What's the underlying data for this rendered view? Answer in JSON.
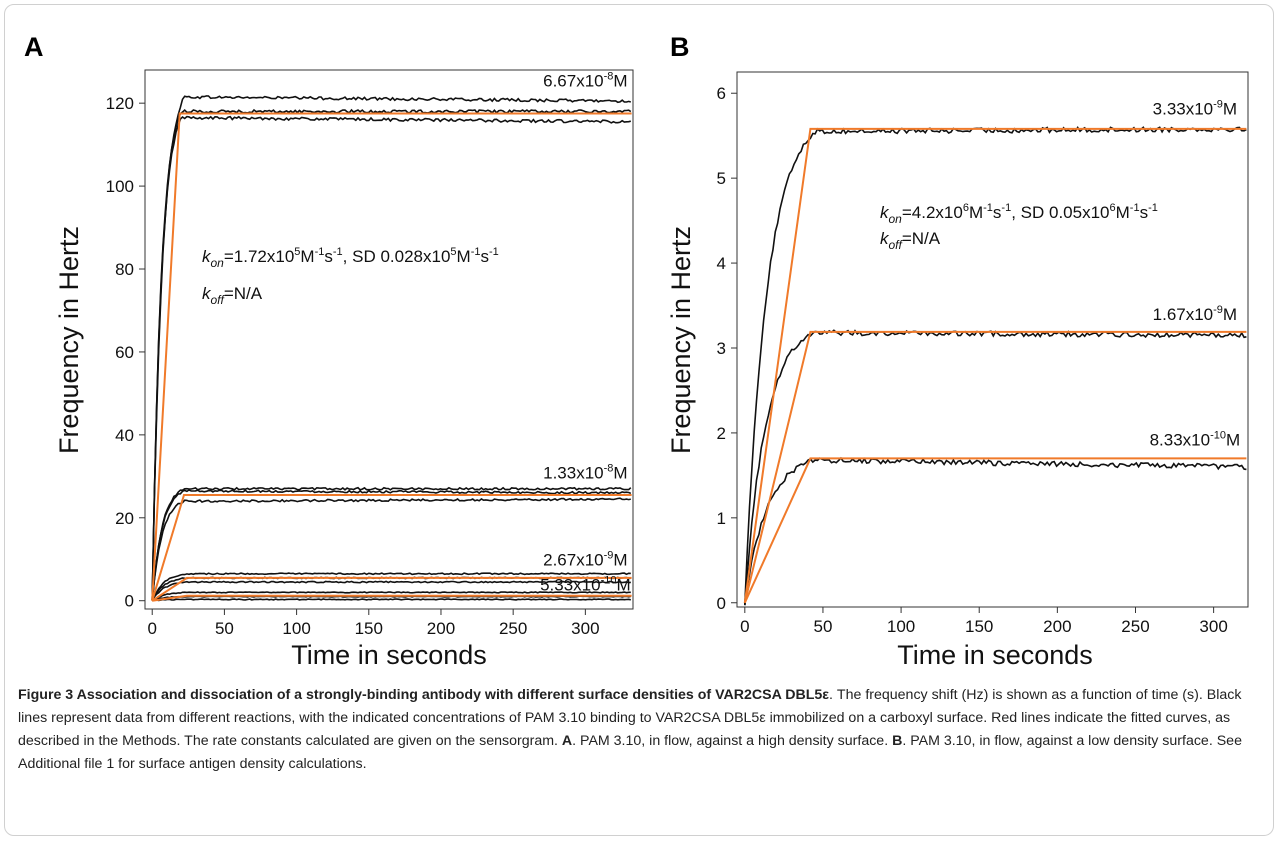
{
  "chart_data": [
    {
      "panel": "A",
      "type": "line",
      "xlabel": "Time in seconds",
      "ylabel": "Frequency in Hertz",
      "xlim": [
        -5,
        333
      ],
      "ylim": [
        -2,
        128
      ],
      "xticks": [
        0,
        50,
        100,
        150,
        200,
        250,
        300
      ],
      "yticks": [
        0,
        20,
        40,
        60,
        80,
        100,
        120
      ],
      "annotation": {
        "kon_sym": "k",
        "kon_sub": "on",
        "kon_value": "=1.72x10",
        "kon_exp1": "5",
        "kon_unit": "M",
        "kon_exp2": "-1",
        "kon_s": "s",
        "kon_exp3": "-1",
        "kon_sd": ", SD 0.028x10",
        "kon_sd_exp1": "5",
        "kon_sd_unit": "M",
        "kon_sd_exp2": "-1",
        "kon_sd_s": "s",
        "kon_sd_exp3": "-1",
        "koff_sym": "k",
        "koff_sub": "off",
        "koff_value": "=N/A"
      },
      "concentrations": [
        {
          "base": "6.67x10",
          "exp": "-8",
          "unit": "M",
          "x": 300,
          "y": 124
        },
        {
          "base": "1.33x10",
          "exp": "-8",
          "unit": "M",
          "x": 300,
          "y": 29.5
        },
        {
          "base": "2.67x10",
          "exp": "-9",
          "unit": "M",
          "x": 300,
          "y": 8.5
        },
        {
          "base": "5.33x10",
          "exp": "-10",
          "unit": "M",
          "x": 300,
          "y": 2.5
        }
      ],
      "data_series": [
        {
          "plateau": 121.5,
          "t_plateau": 22,
          "end": 120.5,
          "noise": 0.35
        },
        {
          "plateau": 118,
          "t_plateau": 20,
          "end": 118,
          "noise": 0.35
        },
        {
          "plateau": 116.5,
          "t_plateau": 20,
          "end": 115.5,
          "noise": 0.35
        },
        {
          "plateau": 27,
          "t_plateau": 22,
          "end": 27,
          "noise": 0.25
        },
        {
          "plateau": 26.5,
          "t_plateau": 22,
          "end": 26,
          "noise": 0.25
        },
        {
          "plateau": 24,
          "t_plateau": 22,
          "end": 24.5,
          "noise": 0.25
        },
        {
          "plateau": 6.5,
          "t_plateau": 25,
          "end": 6.5,
          "noise": 0.15
        },
        {
          "plateau": 5.5,
          "t_plateau": 25,
          "end": 5.5,
          "noise": 0.15
        },
        {
          "plateau": 4.5,
          "t_plateau": 25,
          "end": 4.5,
          "noise": 0.15
        },
        {
          "plateau": 2.0,
          "t_plateau": 25,
          "end": 2.0,
          "noise": 0.1
        },
        {
          "plateau": 1.0,
          "t_plateau": 25,
          "end": 1.0,
          "noise": 0.1
        },
        {
          "plateau": 0.3,
          "t_plateau": 25,
          "end": 0.3,
          "noise": 0.1
        }
      ],
      "fit_series": [
        {
          "plateau": 117.5,
          "t_plateau": 19
        },
        {
          "plateau": 25.5,
          "t_plateau": 22
        },
        {
          "plateau": 5.5,
          "t_plateau": 24
        },
        {
          "plateau": 1.2,
          "t_plateau": 24
        }
      ]
    },
    {
      "panel": "B",
      "type": "line",
      "xlabel": "Time in seconds",
      "ylabel": "Frequency in Hertz",
      "xlim": [
        -5,
        322
      ],
      "ylim": [
        -0.05,
        6.25
      ],
      "xticks": [
        0,
        50,
        100,
        150,
        200,
        250,
        300
      ],
      "yticks": [
        0,
        1,
        2,
        3,
        4,
        5,
        6
      ],
      "annotation": {
        "kon_sym": "k",
        "kon_sub": "on",
        "kon_value": "=4.2x10",
        "kon_exp1": "6",
        "kon_unit": "M",
        "kon_exp2": "-1",
        "kon_s": "s",
        "kon_exp3": "-1",
        "kon_sd": ", SD 0.05x10",
        "kon_sd_exp1": "6",
        "kon_sd_unit": "M",
        "kon_sd_exp2": "-1",
        "kon_sd_s": "s",
        "kon_sd_exp3": "-1",
        "koff_sym": "k",
        "koff_sub": "off",
        "koff_value": "=N/A"
      },
      "concentrations": [
        {
          "base": "3.33x10",
          "exp": "-9",
          "unit": "M",
          "x": 288,
          "y": 5.75
        },
        {
          "base": "1.67x10",
          "exp": "-9",
          "unit": "M",
          "x": 288,
          "y": 3.33
        },
        {
          "base": "8.33x10",
          "exp": "-10",
          "unit": "M",
          "x": 288,
          "y": 1.85
        }
      ],
      "data_series": [
        {
          "plateau": 5.55,
          "t_plateau": 45,
          "end": 5.58,
          "noise": 0.03
        },
        {
          "plateau": 3.18,
          "t_plateau": 43,
          "end": 3.15,
          "noise": 0.03
        },
        {
          "plateau": 1.68,
          "t_plateau": 45,
          "end": 1.6,
          "noise": 0.03
        }
      ],
      "fit_series": [
        {
          "plateau": 5.58,
          "t_plateau": 42
        },
        {
          "plateau": 3.19,
          "t_plateau": 42
        },
        {
          "plateau": 1.7,
          "t_plateau": 42
        }
      ]
    }
  ],
  "caption": {
    "label": "Figure 3 Association and dissociation of a strongly-binding antibody with different surface densities of VAR2CSA DBL5ε",
    "text1": ". The frequency shift (Hz) is shown as a function of time (s). Black lines represent data from different reactions, with the indicated concentrations of PAM 3.10 binding to VAR2CSA DBL5ε immobilized on a carboxyl surface. Red lines indicate the fitted curves, as described in the Methods. The rate constants calculated are given on the sensorgram. ",
    "a_label": "A",
    "text2": ". PAM 3.10, in flow, against a high density surface. ",
    "b_label": "B",
    "text3": ". PAM 3.10, in flow, against a low density surface. See Additional file 1 for surface antigen density calculations."
  },
  "colors": {
    "data": "#111111",
    "fit": "#f07a2a",
    "axis": "#333333"
  }
}
